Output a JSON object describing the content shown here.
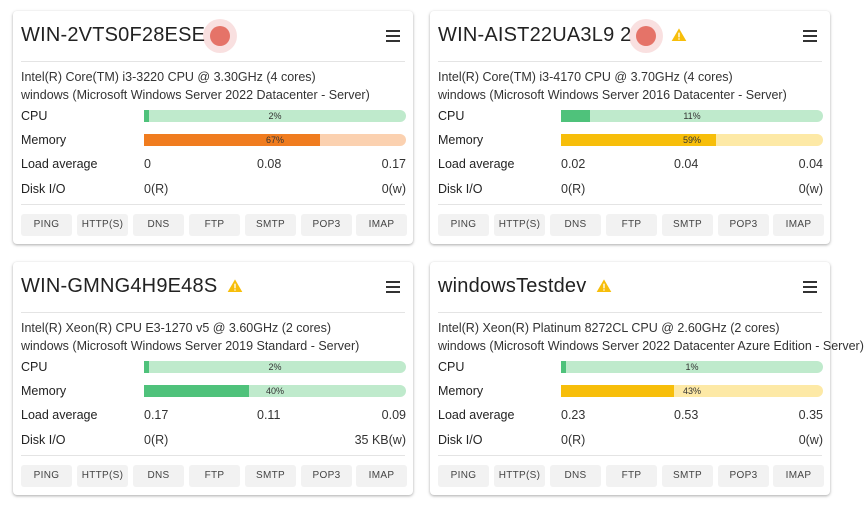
{
  "colors": {
    "green_fill": "#4fc27b",
    "green_track": "#bfeacc",
    "orange_fill": "#f07c1f",
    "orange_track": "#fbd1b0",
    "yellow_fill": "#f7be0a",
    "yellow_track": "#fde9a6",
    "status_red": "#e57368",
    "warning_yellow": "#f7be0a"
  },
  "labels": {
    "cpu": "CPU",
    "memory": "Memory",
    "load_average": "Load average",
    "disk_io": "Disk I/O"
  },
  "services": [
    "PING",
    "HTTP(S)",
    "DNS",
    "FTP",
    "SMTP",
    "POP3",
    "IMAP"
  ],
  "cards": [
    {
      "name": "WIN-2VTS0F28ESE",
      "status": "error-dot",
      "warning": false,
      "cpu_model": "Intel(R) Core(TM) i3-3220 CPU @ 3.30GHz (4 cores)",
      "os": "windows (Microsoft Windows Server 2022 Datacenter - Server)",
      "cpu": {
        "percent": 2,
        "label": "2%",
        "color": "green"
      },
      "memory": {
        "percent": 67,
        "label": "67%",
        "color": "orange"
      },
      "load": [
        "0",
        "0.08",
        "0.17"
      ],
      "disk_read": "0(R)",
      "disk_write": "0(w)"
    },
    {
      "name": "WIN-AIST22UA3L9 2",
      "status": "error-dot",
      "warning": true,
      "cpu_model": "Intel(R) Core(TM) i3-4170 CPU @ 3.70GHz (4 cores)",
      "os": "windows (Microsoft Windows Server 2016 Datacenter - Server)",
      "cpu": {
        "percent": 11,
        "label": "11%",
        "color": "green"
      },
      "memory": {
        "percent": 59,
        "label": "59%",
        "color": "yellow"
      },
      "load": [
        "0.02",
        "0.04",
        "0.04"
      ],
      "disk_read": "0(R)",
      "disk_write": "0(w)"
    },
    {
      "name": "WIN-GMNG4H9E48S",
      "status": "none",
      "warning": true,
      "cpu_model": "Intel(R) Xeon(R) CPU E3-1270 v5 @ 3.60GHz (2 cores)",
      "os": "windows (Microsoft Windows Server 2019 Standard - Server)",
      "cpu": {
        "percent": 2,
        "label": "2%",
        "color": "green"
      },
      "memory": {
        "percent": 40,
        "label": "40%",
        "color": "green"
      },
      "load": [
        "0.17",
        "0.11",
        "0.09"
      ],
      "disk_read": "0(R)",
      "disk_write": "35 KB(w)"
    },
    {
      "name": "windowsTestdev",
      "status": "none",
      "warning": true,
      "cpu_model": "Intel(R) Xeon(R) Platinum 8272CL CPU @ 2.60GHz (2 cores)",
      "os": "windows (Microsoft Windows Server 2022 Datacenter Azure Edition - Server)",
      "cpu": {
        "percent": 1,
        "label": "1%",
        "color": "green"
      },
      "memory": {
        "percent": 43,
        "label": "43%",
        "color": "yellow"
      },
      "load": [
        "0.23",
        "0.53",
        "0.35"
      ],
      "disk_read": "0(R)",
      "disk_write": "0(w)"
    }
  ]
}
